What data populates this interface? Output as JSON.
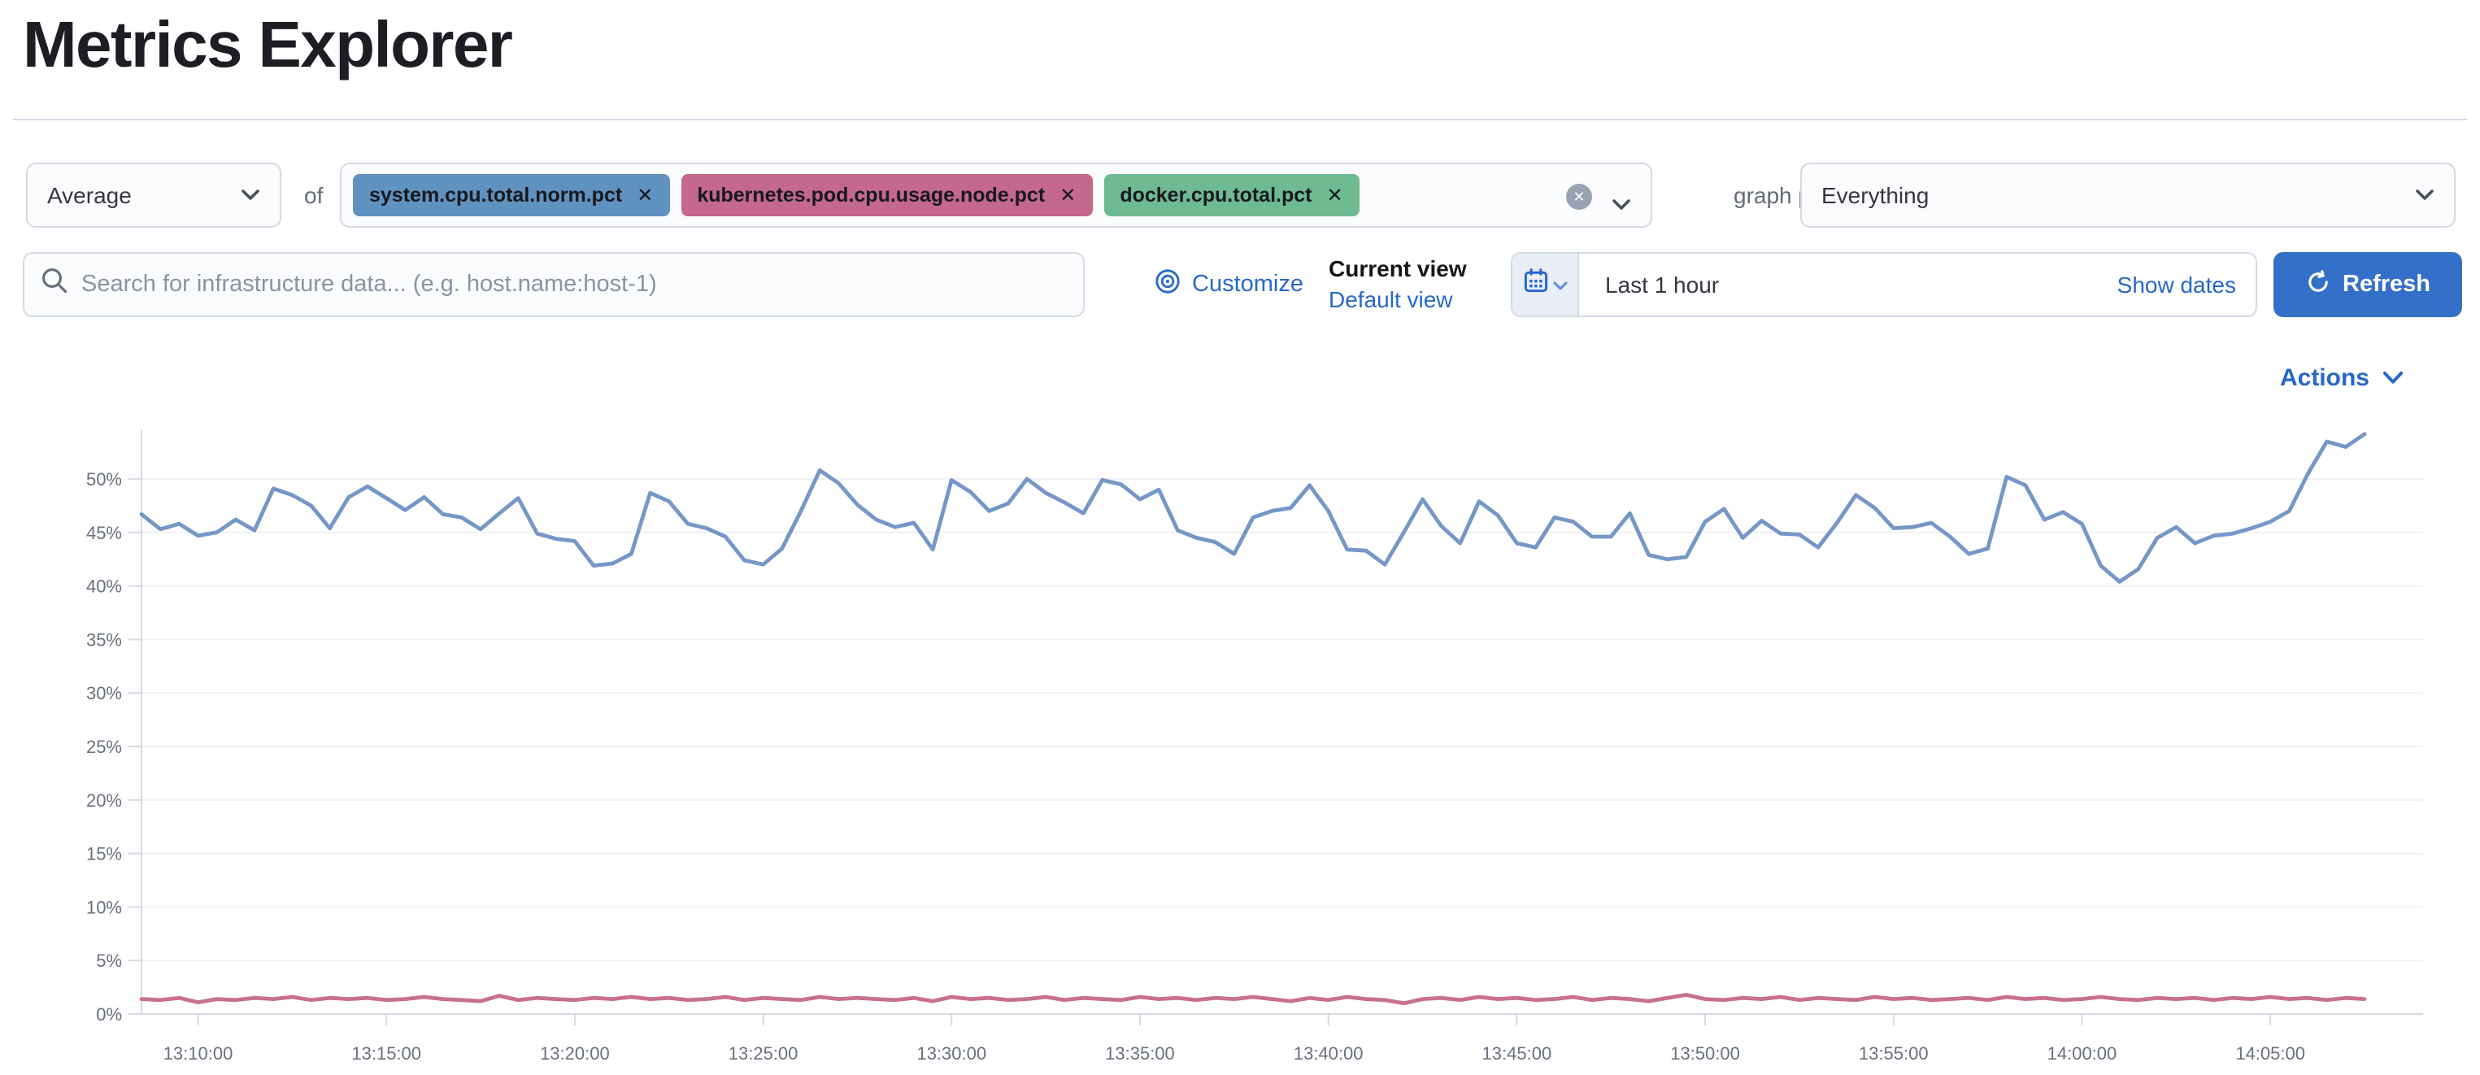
{
  "page": {
    "title": "Metrics Explorer"
  },
  "colors": {
    "link": "#2767CB",
    "primary_button": "#3470C9",
    "tag_blue": "#6092C0",
    "tag_pink": "#C4688C",
    "tag_green": "#6DBA93",
    "line_blue": "#7597C7",
    "line_pink": "#C9708F"
  },
  "toolbar": {
    "aggregation_value": "Average",
    "of_label": "of",
    "metrics": [
      {
        "label": "system.cpu.total.norm.pct",
        "remove_label": "✕",
        "color": "#6092C0"
      },
      {
        "label": "kubernetes.pod.cpu.usage.node.pct",
        "remove_label": "✕",
        "color": "#C4688C"
      },
      {
        "label": "docker.cpu.total.pct",
        "remove_label": "✕",
        "color": "#6DBA93"
      }
    ],
    "clear_label": "✕",
    "graph_per_label": "graph per",
    "graph_per_value": "Everything"
  },
  "searchbar": {
    "placeholder": "Search for infrastructure data... (e.g. host.name:host-1)",
    "customize_label": "Customize",
    "current_view_label": "Current view",
    "default_view_label": "Default view"
  },
  "datepicker": {
    "value": "Last 1 hour",
    "show_dates_label": "Show dates",
    "refresh_label": "Refresh"
  },
  "actions_label": "Actions",
  "chart_data": {
    "type": "line",
    "title": "",
    "xlabel": "",
    "ylabel": "",
    "ylim": [
      0,
      55
    ],
    "grid": "horizontal",
    "legend_position": "none",
    "ytick_values": [
      0,
      5,
      10,
      15,
      20,
      25,
      30,
      35,
      40,
      45,
      50
    ],
    "ytick_labels": [
      "0%",
      "5%",
      "10%",
      "15%",
      "20%",
      "25%",
      "30%",
      "35%",
      "40%",
      "45%",
      "50%"
    ],
    "x_start_label": "13:08:30",
    "x_step_seconds": 30,
    "x_tick_offsets_seconds": [
      90,
      390,
      690,
      990,
      1290,
      1590,
      1890,
      2190,
      2490,
      2790,
      3090,
      3390
    ],
    "x_tick_labels": [
      "13:10:00",
      "13:15:00",
      "13:20:00",
      "13:25:00",
      "13:30:00",
      "13:35:00",
      "13:40:00",
      "13:45:00",
      "13:50:00",
      "13:55:00",
      "14:00:00",
      "14:05:00"
    ],
    "series": [
      {
        "name": "system.cpu.total.norm.pct (avg)",
        "color": "#7597C7",
        "unit": "%",
        "values": [
          46.7,
          45.3,
          45.8,
          44.7,
          45.0,
          46.2,
          45.2,
          49.1,
          48.5,
          47.5,
          45.4,
          48.3,
          49.3,
          48.2,
          47.1,
          48.3,
          46.7,
          46.4,
          45.3,
          46.8,
          48.2,
          44.9,
          44.4,
          44.2,
          41.9,
          42.1,
          43.0,
          48.7,
          47.9,
          45.8,
          45.4,
          44.6,
          42.4,
          42.0,
          43.5,
          47.0,
          50.8,
          49.6,
          47.6,
          46.2,
          45.5,
          45.9,
          43.4,
          49.9,
          48.8,
          47.0,
          47.7,
          50.0,
          48.7,
          47.8,
          46.8,
          49.9,
          49.5,
          48.1,
          49.0,
          45.2,
          44.5,
          44.1,
          43.0,
          46.4,
          47.0,
          47.3,
          49.4,
          47.0,
          43.4,
          43.3,
          42.0,
          45.0,
          48.1,
          45.6,
          44.0,
          47.9,
          46.6,
          44.0,
          43.6,
          46.4,
          46.0,
          44.6,
          44.6,
          46.8,
          42.9,
          42.5,
          42.7,
          46.0,
          47.2,
          44.5,
          46.1,
          44.9,
          44.8,
          43.6,
          45.9,
          48.5,
          47.3,
          45.4,
          45.5,
          45.9,
          44.6,
          43.0,
          43.5,
          50.2,
          49.4,
          46.2,
          46.9,
          45.8,
          41.9,
          40.4,
          41.6,
          44.5,
          45.5,
          44.0,
          44.7,
          44.9,
          45.4,
          46.0,
          47.0,
          50.5,
          53.5,
          53.0,
          54.2
        ]
      },
      {
        "name": "kubernetes.pod.cpu.usage.node.pct (avg)",
        "color": "#C9708F",
        "unit": "%",
        "values": [
          1.4,
          1.3,
          1.5,
          1.1,
          1.4,
          1.3,
          1.5,
          1.4,
          1.6,
          1.3,
          1.5,
          1.4,
          1.5,
          1.3,
          1.4,
          1.6,
          1.4,
          1.3,
          1.2,
          1.7,
          1.3,
          1.5,
          1.4,
          1.3,
          1.5,
          1.4,
          1.6,
          1.4,
          1.5,
          1.3,
          1.4,
          1.6,
          1.3,
          1.5,
          1.4,
          1.3,
          1.6,
          1.4,
          1.5,
          1.4,
          1.3,
          1.5,
          1.2,
          1.6,
          1.4,
          1.5,
          1.3,
          1.4,
          1.6,
          1.3,
          1.5,
          1.4,
          1.3,
          1.6,
          1.4,
          1.5,
          1.3,
          1.5,
          1.4,
          1.6,
          1.4,
          1.2,
          1.5,
          1.3,
          1.6,
          1.4,
          1.3,
          1.0,
          1.4,
          1.5,
          1.3,
          1.6,
          1.4,
          1.5,
          1.3,
          1.4,
          1.6,
          1.3,
          1.5,
          1.4,
          1.2,
          1.5,
          1.8,
          1.4,
          1.3,
          1.5,
          1.4,
          1.6,
          1.3,
          1.5,
          1.4,
          1.3,
          1.6,
          1.4,
          1.5,
          1.3,
          1.4,
          1.5,
          1.3,
          1.6,
          1.4,
          1.5,
          1.3,
          1.4,
          1.6,
          1.4,
          1.3,
          1.5,
          1.4,
          1.5,
          1.3,
          1.5,
          1.4,
          1.6,
          1.4,
          1.5,
          1.3,
          1.5,
          1.4
        ]
      }
    ]
  }
}
